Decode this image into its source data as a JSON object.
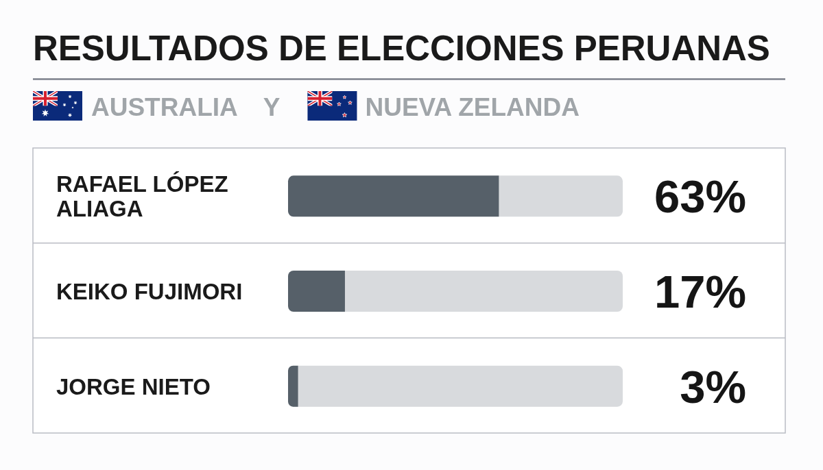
{
  "chart_data": {
    "type": "bar",
    "orientation": "horizontal",
    "title": "RESULTADOS DE ELECCIONES PERUANAS",
    "subtitle": "AUSTRALIA Y NUEVA ZELANDA",
    "categories": [
      "RAFAEL LÓPEZ ALIAGA",
      "KEIKO FUJIMORI",
      "JORGE NIETO"
    ],
    "values": [
      63,
      17,
      3
    ],
    "color": "#566069",
    "xlim": [
      0,
      100
    ],
    "value_labels": [
      "63%",
      "17%",
      "3%"
    ],
    "tick_labels": "y"
  }
}
